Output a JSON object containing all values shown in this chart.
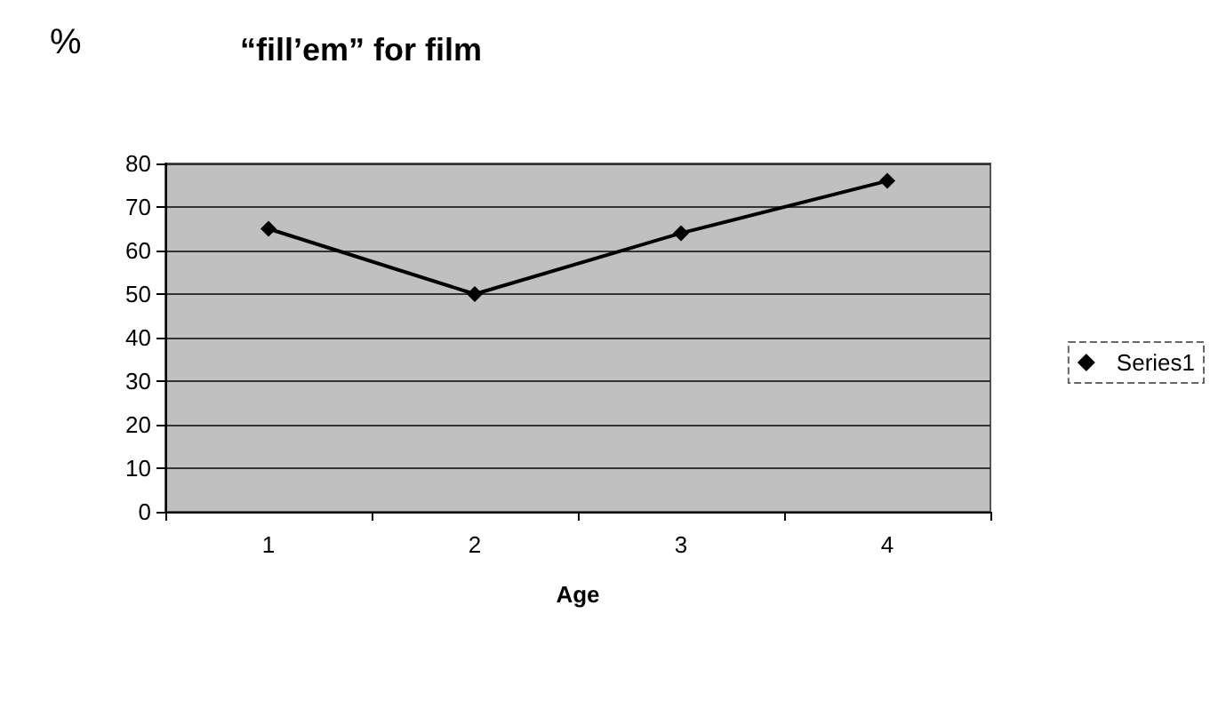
{
  "chart_data": {
    "type": "line",
    "title": "“fill’em” for film",
    "ylabel": "%",
    "xlabel": "Age",
    "categories": [
      "1",
      "2",
      "3",
      "4"
    ],
    "series": [
      {
        "name": "Series1",
        "color": "#000000",
        "values": [
          65,
          50,
          64,
          76
        ]
      }
    ],
    "ylim": [
      0,
      80
    ],
    "yticks": [
      0,
      10,
      20,
      30,
      40,
      50,
      60,
      70,
      80
    ],
    "grid": "y",
    "legend": "right",
    "marker": "diamond",
    "line_style": "solid"
  }
}
